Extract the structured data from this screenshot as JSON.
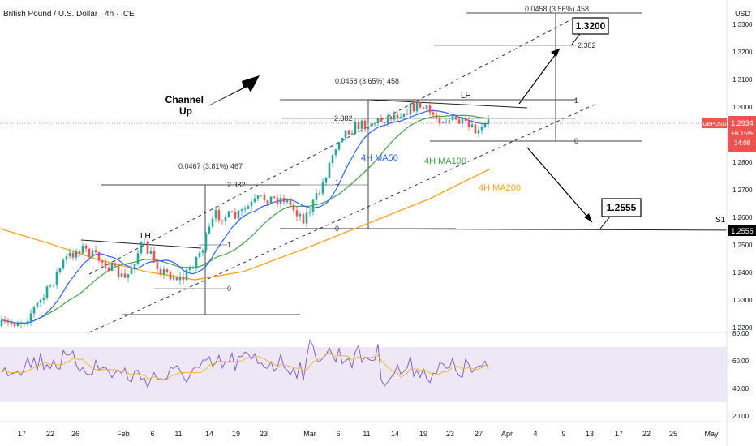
{
  "header": {
    "title": "British Pound / U.S. Dollar · 4h · ICE"
  },
  "axis": {
    "currency": "USD"
  },
  "price_box": {
    "symbol": "GBPUSD",
    "price": "1.2934",
    "change": "+6.15%",
    "countdown": "34:08"
  },
  "colors": {
    "up": "#26a69a",
    "down": "#ef5350",
    "ma50": "#2962ff",
    "ma100": "#43a047",
    "ma200": "#f5a623",
    "rsi": "#7e57c2",
    "rsi_ma": "#f0b429",
    "rsi_band": "#ede7f6"
  },
  "chart_data": {
    "type": "candlestick",
    "timeframe": "4h",
    "ylim": [
      1.215,
      1.34
    ],
    "y_ticks": [
      1.22,
      1.23,
      1.24,
      1.25,
      1.26,
      1.27,
      1.28,
      1.29,
      1.3,
      1.31,
      1.32,
      1.33
    ],
    "x_ticks": [
      "17",
      "22",
      "26",
      "Feb",
      "6",
      "11",
      "14",
      "19",
      "23",
      "Mar",
      "6",
      "11",
      "14",
      "19",
      "23",
      "27",
      "Apr",
      "4",
      "9",
      "13",
      "17",
      "22",
      "25",
      "May"
    ],
    "rsi_ticks": [
      "80.00",
      "60.00",
      "40.00",
      "20.00"
    ],
    "rsi_band": [
      30,
      70
    ],
    "annotations": {
      "channel_label": "Channel\nUp",
      "ma50_label": "4H MA50",
      "ma100_label": "4H MA100",
      "ma200_label": "4H MA200",
      "target_up": "1.3200",
      "target_down": "1.2555",
      "s1_label": "S1",
      "s1_value": "1.2555",
      "lh_label": "LH",
      "fib_1_top": "0.0458 (3.56%) 458",
      "fib_1_ext": "2.382",
      "fib_2_top": "0.0458 (3.65%) 458",
      "fib_2_ext": "2.382",
      "fib_3_top": "0.0467 (3.81%) 467",
      "fib_3_ext": "2.382",
      "fib_one": "1",
      "fib_zero": "0"
    }
  }
}
